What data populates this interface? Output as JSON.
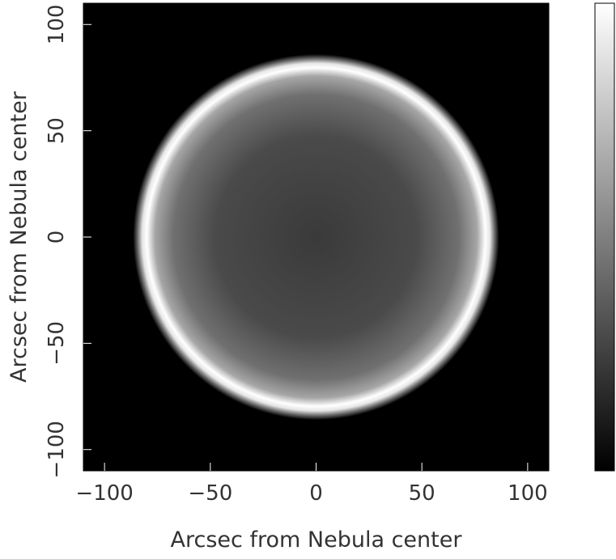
{
  "chart_data": {
    "type": "heatmap",
    "title": "",
    "xlabel": "Arcsec from Nebula center",
    "ylabel": "Arcsec from Nebula center",
    "xlim": [
      -110,
      110
    ],
    "ylim": [
      -110,
      110
    ],
    "x_ticks": [
      -100,
      -50,
      0,
      50,
      100
    ],
    "y_ticks": [
      -100,
      -50,
      0,
      50,
      100
    ],
    "x_tick_labels": [
      "−100",
      "−50",
      "0",
      "50",
      "100"
    ],
    "y_tick_labels": [
      "−100",
      "−50",
      "0",
      "50",
      "100"
    ],
    "grid": false,
    "colormap": "grayscale",
    "colorbar": {
      "orientation": "vertical",
      "low_color": "#000000",
      "high_color": "#ffffff",
      "tick_labels": []
    },
    "feature": {
      "shape": "limb-brightened shell",
      "center": [
        0,
        0
      ],
      "shell_radius_arcsec": 80,
      "edge_brightness": 1.0,
      "interior_center_brightness": 0.3,
      "background_brightness": 0.0
    }
  }
}
